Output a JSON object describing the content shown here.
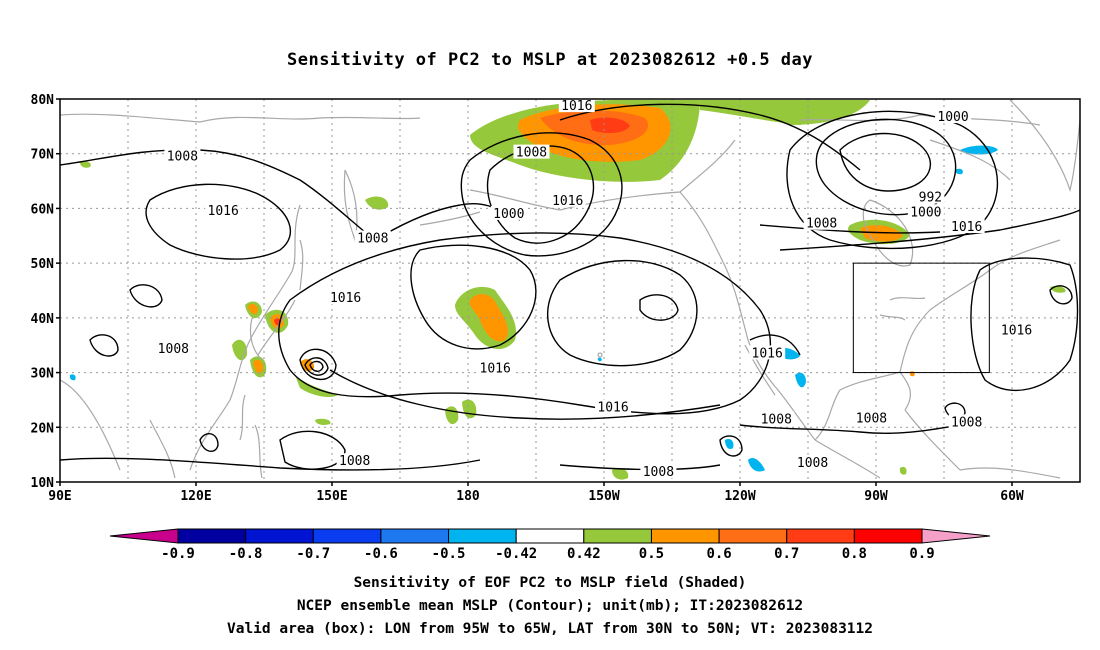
{
  "title": "Sensitivity of PC2 to MSLP at 2023082612 +0.5 day",
  "map": {
    "lat_labels": [
      "80N",
      "70N",
      "60N",
      "50N",
      "40N",
      "30N",
      "20N",
      "10N"
    ],
    "lat_values": [
      80,
      70,
      60,
      50,
      40,
      30,
      20,
      10
    ],
    "lon_labels": [
      "90E",
      "120E",
      "150E",
      "180",
      "150W",
      "120W",
      "90W",
      "60W"
    ],
    "lon_values": [
      90,
      120,
      150,
      180,
      210,
      240,
      270,
      300
    ],
    "lon_range": [
      90,
      315
    ],
    "lat_range": [
      10,
      80
    ],
    "valid_box": {
      "lon": [
        265,
        295
      ],
      "lat": [
        30,
        50
      ]
    },
    "contour_labels": [
      {
        "text": "1016",
        "lon": 204,
        "lat": 78.7
      },
      {
        "text": "1000",
        "lon": 287,
        "lat": 76.7
      },
      {
        "text": "1008",
        "lon": 117,
        "lat": 69.5
      },
      {
        "text": "1008",
        "lon": 194,
        "lat": 70.2
      },
      {
        "text": "1016",
        "lon": 126,
        "lat": 59.5
      },
      {
        "text": "1000",
        "lon": 189,
        "lat": 59.0
      },
      {
        "text": "1016",
        "lon": 202,
        "lat": 61.4
      },
      {
        "text": "992",
        "lon": 282,
        "lat": 62.0
      },
      {
        "text": "1000",
        "lon": 281,
        "lat": 59.3
      },
      {
        "text": "1008",
        "lon": 159,
        "lat": 54.5
      },
      {
        "text": "1008",
        "lon": 258,
        "lat": 57.2
      },
      {
        "text": "1016",
        "lon": 290,
        "lat": 56.6
      },
      {
        "text": "1016",
        "lon": 153,
        "lat": 43.6
      },
      {
        "text": "1016",
        "lon": 301,
        "lat": 37.7
      },
      {
        "text": "1008",
        "lon": 115,
        "lat": 34.3
      },
      {
        "text": "1016",
        "lon": 246,
        "lat": 33.5
      },
      {
        "text": "1016",
        "lon": 186,
        "lat": 30.7
      },
      {
        "text": "1016",
        "lon": 212,
        "lat": 23.6
      },
      {
        "text": "1008",
        "lon": 248,
        "lat": 21.4
      },
      {
        "text": "1008",
        "lon": 269,
        "lat": 21.6
      },
      {
        "text": "1008",
        "lon": 290,
        "lat": 20.9
      },
      {
        "text": "1008",
        "lon": 256,
        "lat": 13.5
      },
      {
        "text": "1008",
        "lon": 155,
        "lat": 13.8
      },
      {
        "text": "1008",
        "lon": 222,
        "lat": 11.8
      }
    ]
  },
  "colorbar": {
    "levels": [
      "-0.9",
      "-0.8",
      "-0.7",
      "-0.6",
      "-0.5",
      "-0.42",
      "0.42",
      "0.5",
      "0.6",
      "0.7",
      "0.8",
      "0.9"
    ],
    "low_end_color": "#c8008c",
    "high_end_color": "#f5a0c8",
    "colors": [
      "#0000a0",
      "#0014d2",
      "#0a3cf0",
      "#1e78f0",
      "#00b4f0",
      "#ffffff",
      "#96c83c",
      "#ff9600",
      "#ff6e14",
      "#ff3c14",
      "#ff0000"
    ],
    "neutral_color": "#ffffff"
  },
  "shading_colors": {
    "green": "#96c83c",
    "orange": "#ff9600",
    "dark_orange": "#ff6e14",
    "red": "#ff3c14",
    "blue": "#00b4f0"
  },
  "captions": {
    "line1": "Sensitivity of EOF PC2 to MSLP field (Shaded)",
    "line2": "NCEP ensemble mean MSLP (Contour); unit(mb); IT:2023082612",
    "line3": "Valid area (box): LON from 95W to 65W, LAT from 30N to 50N; VT: 2023083112"
  }
}
